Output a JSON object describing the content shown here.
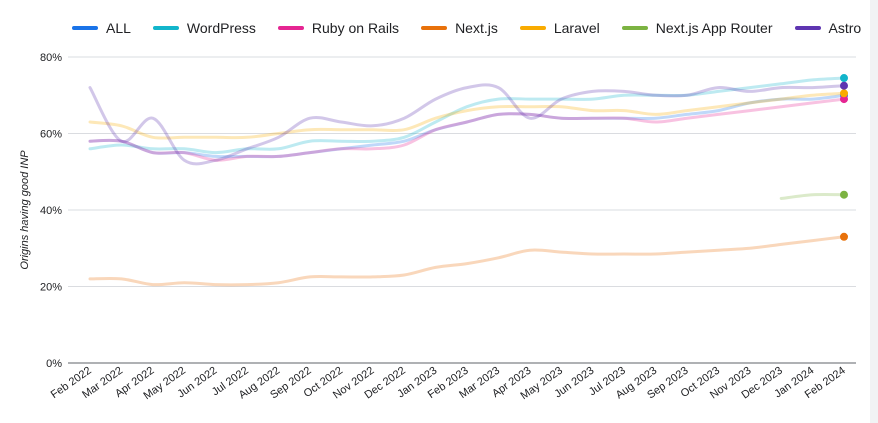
{
  "chart_data": {
    "type": "line",
    "title": "",
    "xlabel": "",
    "ylabel": "Origins having good INP",
    "ylim": [
      0,
      80
    ],
    "y_ticks": [
      "0%",
      "20%",
      "40%",
      "60%",
      "80%"
    ],
    "y_tick_values": [
      0,
      20,
      40,
      60,
      80
    ],
    "grid": "horizontal",
    "legend_position": "top",
    "categories": [
      "Feb 2022",
      "Mar 2022",
      "Apr 2022",
      "May 2022",
      "Jun 2022",
      "Jul 2022",
      "Aug 2022",
      "Sep 2022",
      "Oct 2022",
      "Nov 2022",
      "Dec 2022",
      "Jan 2023",
      "Feb 2023",
      "Mar 2023",
      "Apr 2023",
      "May 2023",
      "Jun 2023",
      "Jul 2023",
      "Aug 2023",
      "Sep 2023",
      "Oct 2023",
      "Nov 2023",
      "Dec 2023",
      "Jan 2024",
      "Feb 2024"
    ],
    "series": [
      {
        "name": "ALL",
        "color": "#1a73e8",
        "values": [
          58,
          58,
          55,
          55,
          54,
          54,
          54,
          55,
          56,
          57,
          58,
          61,
          63,
          65,
          65,
          64,
          64,
          64,
          64,
          65,
          66,
          68,
          69,
          69,
          70
        ]
      },
      {
        "name": "WordPress",
        "color": "#12b5cb",
        "values": [
          56,
          57,
          56,
          56,
          55,
          56,
          56,
          58,
          58,
          58,
          59,
          63,
          67,
          69,
          69,
          69,
          69,
          70,
          70,
          70,
          71,
          72,
          73,
          74,
          74.5
        ]
      },
      {
        "name": "Ruby on Rails",
        "color": "#e52592",
        "values": [
          58,
          58,
          55,
          55,
          53,
          54,
          54,
          55,
          56,
          56,
          57,
          61,
          63,
          65,
          65,
          64,
          64,
          64,
          63,
          64,
          65,
          66,
          67,
          68,
          69
        ]
      },
      {
        "name": "Next.js",
        "color": "#e8710a",
        "values": [
          22,
          22,
          20.5,
          21,
          20.5,
          20.5,
          21,
          22.5,
          22.5,
          22.5,
          23,
          25,
          26,
          27.5,
          29.5,
          29,
          28.5,
          28.5,
          28.5,
          29,
          29.5,
          30,
          31,
          32,
          33
        ]
      },
      {
        "name": "Laravel",
        "color": "#f9ab00",
        "values": [
          63,
          62,
          59,
          59,
          59,
          59,
          60,
          61,
          61,
          61,
          61,
          64,
          66,
          67,
          67,
          67,
          66,
          66,
          65,
          66,
          67,
          68,
          69,
          70,
          70.5
        ]
      },
      {
        "name": "Next.js App Router",
        "color": "#7cb342",
        "values": [
          null,
          null,
          null,
          null,
          null,
          null,
          null,
          null,
          null,
          null,
          null,
          null,
          null,
          null,
          null,
          null,
          null,
          null,
          null,
          null,
          null,
          null,
          43,
          44,
          44
        ]
      },
      {
        "name": "Astro",
        "color": "#5e35b1",
        "values": [
          72,
          58,
          64,
          53,
          53,
          56,
          59,
          64,
          63,
          62,
          64,
          69,
          72,
          72,
          64,
          69,
          71,
          71,
          70,
          70,
          72,
          71,
          72,
          72,
          72.5
        ]
      }
    ]
  }
}
